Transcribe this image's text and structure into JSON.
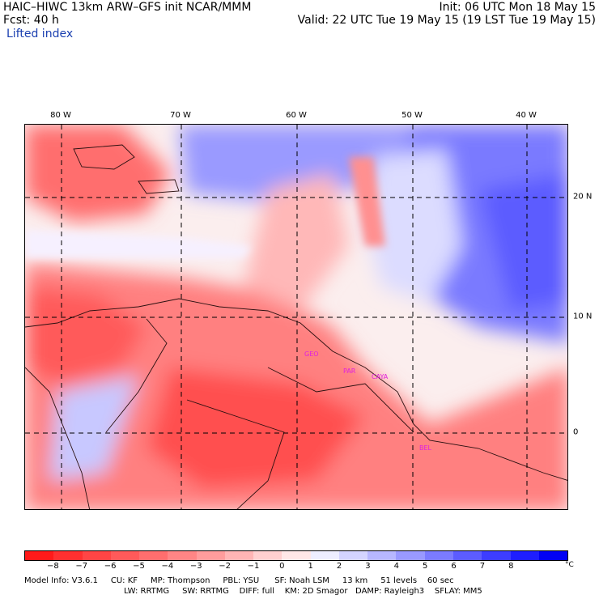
{
  "header": {
    "line1_left": "HAIC–HIWC 13km ARW–GFS init    NCAR/MMM",
    "line1_right": "Init: 06 UTC Mon 18 May 15",
    "line2_left": "Fcst:    40 h",
    "line2_right": "Valid: 22 UTC Tue 19 May 15 (19 LST Tue 19 May 15)",
    "field_name": "Lifted index"
  },
  "map": {
    "lon_labels": [
      "80 W",
      "70 W",
      "60 W",
      "50 W",
      "40 W"
    ],
    "lat_labels": [
      "20 N",
      "10 N",
      "0"
    ],
    "cities": [
      "GEO",
      "PAR",
      "CAYA",
      "BEL"
    ]
  },
  "colorbar": {
    "ticks": [
      "−8",
      "−7",
      "−6",
      "−5",
      "−4",
      "−3",
      "−2",
      "−1",
      "0",
      "1",
      "2",
      "3",
      "4",
      "5",
      "6",
      "7",
      "8"
    ],
    "unit": "°C",
    "colors": [
      "#ff1a1a",
      "#ff3030",
      "#ff4545",
      "#ff5a5a",
      "#ff6e6e",
      "#ff8585",
      "#ff9c9c",
      "#ffb5b5",
      "#ffd0d0",
      "#ffe8e8",
      "#eeeeff",
      "#d4d4ff",
      "#b7b7ff",
      "#9999ff",
      "#7b7bff",
      "#5c5cff",
      "#3d3dff",
      "#1e1eff",
      "#0000f5"
    ]
  },
  "footer": {
    "line1": [
      "Model Info: V3.6.1",
      "CU: KF",
      "MP: Thompson",
      "PBL: YSU",
      "SF: Noah LSM",
      "13 km",
      "51 levels",
      "60 sec"
    ],
    "line2": [
      "LW: RRTMG",
      "SW: RRTMG",
      "DIFF: full",
      "KM: 2D Smagor",
      "DAMP: Rayleigh3",
      "SFLAY: MM5"
    ]
  }
}
